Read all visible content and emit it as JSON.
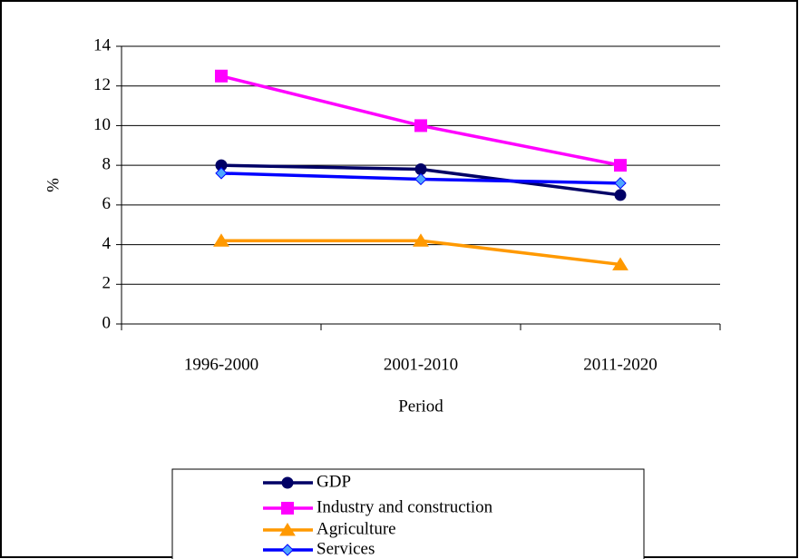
{
  "chart_data": {
    "type": "line",
    "categories": [
      "1996-2000",
      "2001-2010",
      "2011-2020"
    ],
    "x_label": "Period",
    "y_label": "%",
    "ylim": [
      0,
      14
    ],
    "yticks": [
      0,
      2,
      4,
      6,
      8,
      10,
      12,
      14
    ],
    "grid": true,
    "legend": "bottom",
    "series": [
      {
        "name": "GDP",
        "color": "#000066",
        "marker": "circle",
        "values": [
          8,
          7.8,
          6.5
        ]
      },
      {
        "name": "Industry and construction",
        "color": "#ff00ff",
        "marker": "square",
        "values": [
          12.5,
          10,
          8
        ]
      },
      {
        "name": "Agriculture",
        "color": "#ff9900",
        "marker": "triangle",
        "values": [
          4.2,
          4.2,
          3
        ]
      },
      {
        "name": "Services",
        "color": "#0000ff",
        "marker": "diamond",
        "values": [
          7.6,
          7.3,
          7.1
        ]
      }
    ]
  }
}
